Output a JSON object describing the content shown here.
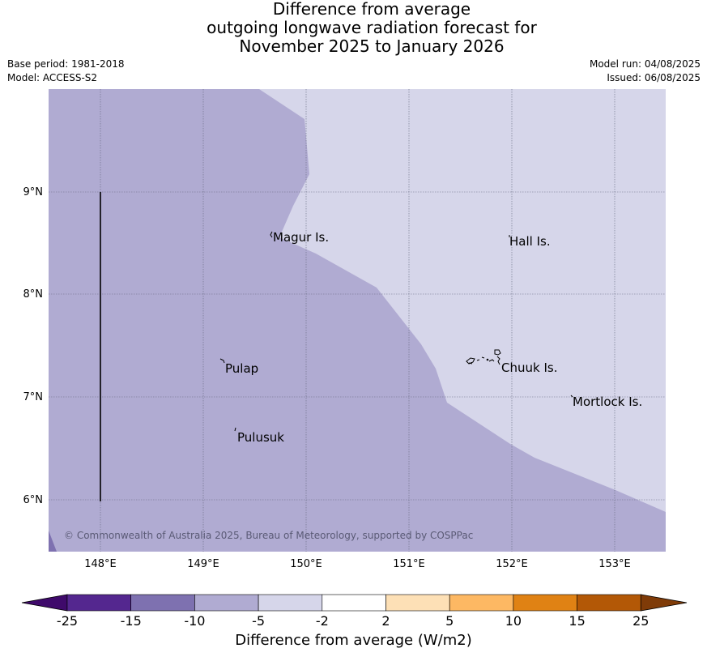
{
  "title": {
    "line1": "Difference from average",
    "line2": "outgoing longwave radiation forecast for",
    "line3": "November 2025 to January 2026"
  },
  "meta": {
    "base_period": "Base period: 1981-2018",
    "model": "Model: ACCESS-S2",
    "model_run": "Model run: 04/08/2025",
    "issued": "Issued: 06/08/2025"
  },
  "map": {
    "lat_labels": [
      "9°N",
      "8°N",
      "7°N",
      "6°N"
    ],
    "lon_labels": [
      "148°E",
      "149°E",
      "150°E",
      "151°E",
      "152°E",
      "153°E"
    ],
    "places": [
      {
        "name": "Magur Is."
      },
      {
        "name": "Hall Is."
      },
      {
        "name": "Pulap"
      },
      {
        "name": "Chuuk Is."
      },
      {
        "name": "Mortlock Is."
      },
      {
        "name": "Pulusuk"
      }
    ],
    "copyright": "© Commonwealth of Australia 2025, Bureau of Meteorology, supported by COSPPac",
    "colors": {
      "anom_minus_10_to_minus_5": "#b0abd2",
      "anom_minus_5_to_minus_2": "#d6d6ea",
      "anom_minus_15_to_minus_10": "#7e71b0"
    }
  },
  "colorbar": {
    "ticks": [
      "-25",
      "-15",
      "-10",
      "-5",
      "-2",
      "2",
      "5",
      "10",
      "15",
      "25"
    ],
    "colors": [
      "#3f0a6b",
      "#54278f",
      "#7e71b0",
      "#b0abd2",
      "#d6d6ea",
      "#ffffff",
      "#fde0b6",
      "#fdb863",
      "#e08214",
      "#b35806",
      "#7f3b08"
    ],
    "label": "Difference from average (W/m2)"
  }
}
